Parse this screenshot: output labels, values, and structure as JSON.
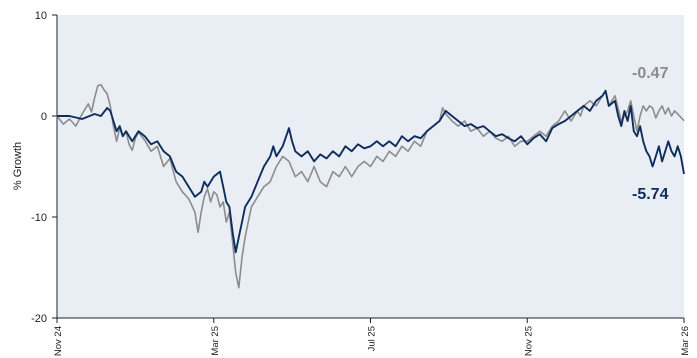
{
  "chart_data": {
    "type": "line",
    "title": "",
    "xlabel": "",
    "ylabel": "% Growth",
    "ylim": [
      -20,
      10
    ],
    "yticks": [
      10,
      0,
      -10,
      -20
    ],
    "grid": false,
    "background_color": "#e9eef4",
    "x_tick_labels": [
      "Nov 24",
      "Mar 25",
      "Jul 25",
      "Nov 25",
      "Mar 26"
    ],
    "x_tick_positions": [
      0,
      0.25,
      0.5,
      0.75,
      1.0
    ],
    "series": [
      {
        "color": "#8c8c8c",
        "end_label": "-0.47",
        "points": [
          [
            0.0,
            0.0
          ],
          [
            0.01,
            -0.8
          ],
          [
            0.02,
            -0.3
          ],
          [
            0.03,
            -1.0
          ],
          [
            0.04,
            0.2
          ],
          [
            0.05,
            1.2
          ],
          [
            0.055,
            0.4
          ],
          [
            0.06,
            1.8
          ],
          [
            0.065,
            3.0
          ],
          [
            0.07,
            3.1
          ],
          [
            0.075,
            2.6
          ],
          [
            0.08,
            2.2
          ],
          [
            0.085,
            1.0
          ],
          [
            0.09,
            -1.0
          ],
          [
            0.095,
            -2.5
          ],
          [
            0.1,
            -1.2
          ],
          [
            0.105,
            -2.0
          ],
          [
            0.11,
            -1.5
          ],
          [
            0.115,
            -2.8
          ],
          [
            0.12,
            -3.4
          ],
          [
            0.125,
            -2.2
          ],
          [
            0.13,
            -1.6
          ],
          [
            0.14,
            -2.4
          ],
          [
            0.15,
            -3.5
          ],
          [
            0.16,
            -3.0
          ],
          [
            0.17,
            -5.0
          ],
          [
            0.18,
            -4.2
          ],
          [
            0.19,
            -6.5
          ],
          [
            0.2,
            -7.5
          ],
          [
            0.21,
            -8.2
          ],
          [
            0.22,
            -9.5
          ],
          [
            0.225,
            -11.5
          ],
          [
            0.23,
            -9.5
          ],
          [
            0.235,
            -8.0
          ],
          [
            0.24,
            -7.2
          ],
          [
            0.245,
            -8.5
          ],
          [
            0.25,
            -7.5
          ],
          [
            0.255,
            -7.8
          ],
          [
            0.26,
            -9.0
          ],
          [
            0.265,
            -8.5
          ],
          [
            0.27,
            -10.5
          ],
          [
            0.275,
            -9.5
          ],
          [
            0.28,
            -12.5
          ],
          [
            0.285,
            -15.5
          ],
          [
            0.29,
            -17.0
          ],
          [
            0.295,
            -14.0
          ],
          [
            0.3,
            -12.0
          ],
          [
            0.305,
            -10.5
          ],
          [
            0.31,
            -9.0
          ],
          [
            0.32,
            -8.0
          ],
          [
            0.33,
            -7.0
          ],
          [
            0.34,
            -6.5
          ],
          [
            0.35,
            -5.0
          ],
          [
            0.36,
            -4.0
          ],
          [
            0.37,
            -4.5
          ],
          [
            0.38,
            -6.0
          ],
          [
            0.39,
            -5.5
          ],
          [
            0.4,
            -6.5
          ],
          [
            0.41,
            -5.0
          ],
          [
            0.42,
            -6.5
          ],
          [
            0.43,
            -7.0
          ],
          [
            0.44,
            -5.5
          ],
          [
            0.45,
            -6.0
          ],
          [
            0.46,
            -5.0
          ],
          [
            0.47,
            -6.0
          ],
          [
            0.48,
            -5.0
          ],
          [
            0.49,
            -4.5
          ],
          [
            0.5,
            -5.0
          ],
          [
            0.51,
            -4.0
          ],
          [
            0.52,
            -4.5
          ],
          [
            0.53,
            -3.5
          ],
          [
            0.54,
            -4.0
          ],
          [
            0.55,
            -3.0
          ],
          [
            0.56,
            -3.5
          ],
          [
            0.57,
            -2.5
          ],
          [
            0.58,
            -3.0
          ],
          [
            0.59,
            -1.5
          ],
          [
            0.6,
            -1.0
          ],
          [
            0.61,
            -0.5
          ],
          [
            0.615,
            0.8
          ],
          [
            0.62,
            0.2
          ],
          [
            0.63,
            -0.5
          ],
          [
            0.64,
            -1.0
          ],
          [
            0.65,
            -0.5
          ],
          [
            0.66,
            -1.5
          ],
          [
            0.67,
            -1.2
          ],
          [
            0.68,
            -2.0
          ],
          [
            0.69,
            -1.5
          ],
          [
            0.7,
            -2.2
          ],
          [
            0.71,
            -2.5
          ],
          [
            0.72,
            -2.0
          ],
          [
            0.73,
            -3.0
          ],
          [
            0.74,
            -2.5
          ],
          [
            0.75,
            -2.5
          ],
          [
            0.76,
            -2.0
          ],
          [
            0.77,
            -1.5
          ],
          [
            0.78,
            -2.0
          ],
          [
            0.79,
            -1.0
          ],
          [
            0.8,
            -0.5
          ],
          [
            0.81,
            0.5
          ],
          [
            0.82,
            -0.5
          ],
          [
            0.83,
            0.5
          ],
          [
            0.835,
            0.0
          ],
          [
            0.84,
            1.0
          ],
          [
            0.85,
            1.5
          ],
          [
            0.86,
            1.0
          ],
          [
            0.87,
            2.0
          ],
          [
            0.875,
            2.5
          ],
          [
            0.88,
            1.0
          ],
          [
            0.89,
            2.0
          ],
          [
            0.9,
            -0.5
          ],
          [
            0.91,
            0.5
          ],
          [
            0.915,
            1.5
          ],
          [
            0.92,
            0.0
          ],
          [
            0.925,
            -1.5
          ],
          [
            0.93,
            0.0
          ],
          [
            0.935,
            1.0
          ],
          [
            0.94,
            0.5
          ],
          [
            0.945,
            1.0
          ],
          [
            0.95,
            0.8
          ],
          [
            0.955,
            -0.2
          ],
          [
            0.96,
            0.5
          ],
          [
            0.965,
            1.0
          ],
          [
            0.97,
            0.2
          ],
          [
            0.975,
            0.8
          ],
          [
            0.98,
            0.0
          ],
          [
            0.985,
            0.5
          ],
          [
            0.99,
            0.2
          ],
          [
            1.0,
            -0.47
          ]
        ]
      },
      {
        "color": "#0f2d5c",
        "end_label": "-5.74",
        "points": [
          [
            0.0,
            0.0
          ],
          [
            0.02,
            0.0
          ],
          [
            0.04,
            -0.3
          ],
          [
            0.06,
            0.2
          ],
          [
            0.07,
            0.0
          ],
          [
            0.08,
            0.8
          ],
          [
            0.085,
            0.5
          ],
          [
            0.09,
            -0.5
          ],
          [
            0.095,
            -1.5
          ],
          [
            0.1,
            -1.0
          ],
          [
            0.105,
            -2.0
          ],
          [
            0.11,
            -1.5
          ],
          [
            0.12,
            -2.5
          ],
          [
            0.13,
            -1.5
          ],
          [
            0.14,
            -2.0
          ],
          [
            0.15,
            -2.8
          ],
          [
            0.16,
            -2.5
          ],
          [
            0.17,
            -3.5
          ],
          [
            0.18,
            -4.0
          ],
          [
            0.19,
            -5.5
          ],
          [
            0.2,
            -6.0
          ],
          [
            0.21,
            -7.0
          ],
          [
            0.22,
            -8.0
          ],
          [
            0.23,
            -7.5
          ],
          [
            0.235,
            -6.5
          ],
          [
            0.24,
            -7.0
          ],
          [
            0.25,
            -6.0
          ],
          [
            0.26,
            -5.5
          ],
          [
            0.265,
            -7.0
          ],
          [
            0.27,
            -8.5
          ],
          [
            0.275,
            -9.0
          ],
          [
            0.28,
            -11.5
          ],
          [
            0.285,
            -13.5
          ],
          [
            0.29,
            -12.0
          ],
          [
            0.295,
            -10.5
          ],
          [
            0.3,
            -9.0
          ],
          [
            0.31,
            -8.0
          ],
          [
            0.32,
            -6.5
          ],
          [
            0.33,
            -5.0
          ],
          [
            0.34,
            -4.0
          ],
          [
            0.345,
            -3.0
          ],
          [
            0.35,
            -4.0
          ],
          [
            0.36,
            -3.0
          ],
          [
            0.37,
            -1.2
          ],
          [
            0.375,
            -2.5
          ],
          [
            0.38,
            -3.5
          ],
          [
            0.39,
            -4.0
          ],
          [
            0.4,
            -3.5
          ],
          [
            0.41,
            -4.5
          ],
          [
            0.42,
            -3.8
          ],
          [
            0.43,
            -4.2
          ],
          [
            0.44,
            -3.5
          ],
          [
            0.45,
            -4.0
          ],
          [
            0.46,
            -3.0
          ],
          [
            0.47,
            -3.5
          ],
          [
            0.48,
            -2.8
          ],
          [
            0.49,
            -3.2
          ],
          [
            0.5,
            -3.0
          ],
          [
            0.51,
            -2.5
          ],
          [
            0.52,
            -3.0
          ],
          [
            0.53,
            -2.5
          ],
          [
            0.54,
            -3.0
          ],
          [
            0.55,
            -2.0
          ],
          [
            0.56,
            -2.5
          ],
          [
            0.57,
            -2.0
          ],
          [
            0.58,
            -2.2
          ],
          [
            0.59,
            -1.5
          ],
          [
            0.6,
            -1.0
          ],
          [
            0.61,
            -0.5
          ],
          [
            0.62,
            0.5
          ],
          [
            0.63,
            0.0
          ],
          [
            0.64,
            -0.5
          ],
          [
            0.65,
            -1.0
          ],
          [
            0.66,
            -0.8
          ],
          [
            0.67,
            -1.2
          ],
          [
            0.68,
            -1.0
          ],
          [
            0.69,
            -1.5
          ],
          [
            0.7,
            -2.0
          ],
          [
            0.71,
            -1.8
          ],
          [
            0.72,
            -2.2
          ],
          [
            0.73,
            -2.5
          ],
          [
            0.74,
            -2.0
          ],
          [
            0.75,
            -2.8
          ],
          [
            0.76,
            -2.2
          ],
          [
            0.77,
            -1.8
          ],
          [
            0.78,
            -2.5
          ],
          [
            0.79,
            -1.2
          ],
          [
            0.8,
            -0.8
          ],
          [
            0.81,
            -0.5
          ],
          [
            0.82,
            0.0
          ],
          [
            0.83,
            0.5
          ],
          [
            0.84,
            1.0
          ],
          [
            0.85,
            0.5
          ],
          [
            0.86,
            1.5
          ],
          [
            0.87,
            2.0
          ],
          [
            0.875,
            2.5
          ],
          [
            0.88,
            1.0
          ],
          [
            0.89,
            1.5
          ],
          [
            0.895,
            0.0
          ],
          [
            0.9,
            -1.0
          ],
          [
            0.905,
            0.5
          ],
          [
            0.91,
            -0.5
          ],
          [
            0.915,
            1.0
          ],
          [
            0.92,
            -1.5
          ],
          [
            0.925,
            -2.0
          ],
          [
            0.93,
            -1.0
          ],
          [
            0.935,
            -2.5
          ],
          [
            0.94,
            -3.5
          ],
          [
            0.945,
            -4.0
          ],
          [
            0.95,
            -5.0
          ],
          [
            0.955,
            -4.0
          ],
          [
            0.96,
            -3.0
          ],
          [
            0.965,
            -4.5
          ],
          [
            0.97,
            -3.5
          ],
          [
            0.975,
            -2.5
          ],
          [
            0.98,
            -3.5
          ],
          [
            0.985,
            -4.0
          ],
          [
            0.99,
            -3.0
          ],
          [
            0.995,
            -4.0
          ],
          [
            1.0,
            -5.74
          ]
        ]
      }
    ]
  }
}
